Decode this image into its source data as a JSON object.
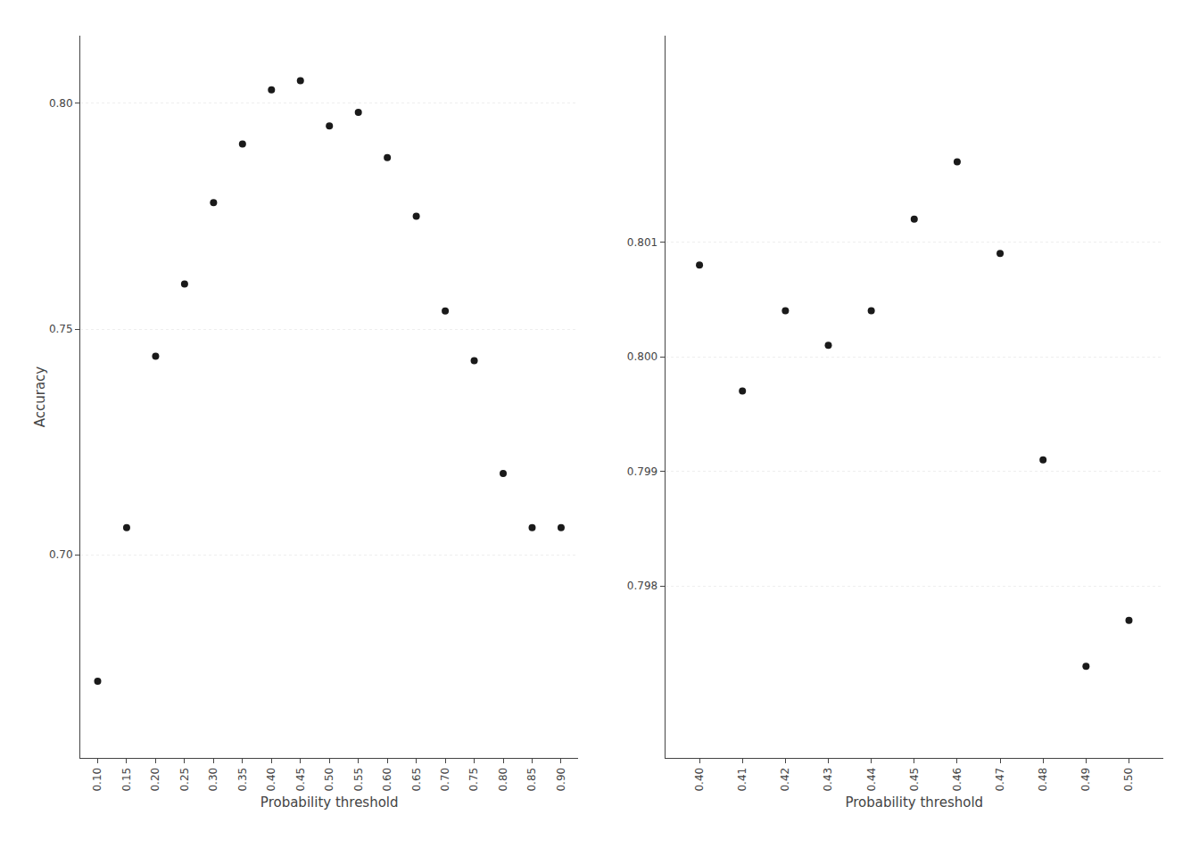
{
  "chart_data": [
    {
      "type": "scatter",
      "x": [
        0.1,
        0.15,
        0.2,
        0.25,
        0.3,
        0.35,
        0.4,
        0.45,
        0.5,
        0.55,
        0.6,
        0.65,
        0.7,
        0.75,
        0.8,
        0.85,
        0.9
      ],
      "values": [
        0.672,
        0.706,
        0.744,
        0.76,
        0.778,
        0.791,
        0.803,
        0.805,
        0.795,
        0.798,
        0.788,
        0.775,
        0.754,
        0.743,
        0.718,
        0.706,
        0.706
      ],
      "color": "#1a1a1a",
      "marker": "circle",
      "x_label": "Probability threshold",
      "y_label": "Accuracy",
      "xlim": [
        0.07,
        0.93
      ],
      "ylim": [
        0.655,
        0.815
      ],
      "xticks": [
        {
          "value": 0.1,
          "label": "0.10"
        },
        {
          "value": 0.15,
          "label": "0.15"
        },
        {
          "value": 0.2,
          "label": "0.20"
        },
        {
          "value": 0.25,
          "label": "0.25"
        },
        {
          "value": 0.3,
          "label": "0.30"
        },
        {
          "value": 0.35,
          "label": "0.35"
        },
        {
          "value": 0.4,
          "label": "0.40"
        },
        {
          "value": 0.45,
          "label": "0.45"
        },
        {
          "value": 0.5,
          "label": "0.50"
        },
        {
          "value": 0.55,
          "label": "0.55"
        },
        {
          "value": 0.6,
          "label": "0.60"
        },
        {
          "value": 0.65,
          "label": "0.65"
        },
        {
          "value": 0.7,
          "label": "0.70"
        },
        {
          "value": 0.75,
          "label": "0.75"
        },
        {
          "value": 0.8,
          "label": "0.80"
        },
        {
          "value": 0.85,
          "label": "0.85"
        },
        {
          "value": 0.9,
          "label": "0.90"
        }
      ],
      "yticks": [
        {
          "value": 0.7,
          "label": "0.70"
        },
        {
          "value": 0.75,
          "label": "0.75"
        },
        {
          "value": 0.8,
          "label": "0.80"
        }
      ],
      "grid": true
    },
    {
      "type": "scatter",
      "x": [
        0.4,
        0.41,
        0.42,
        0.43,
        0.44,
        0.45,
        0.46,
        0.47,
        0.48,
        0.49,
        0.5
      ],
      "values": [
        0.8008,
        0.7997,
        0.8004,
        0.8001,
        0.8004,
        0.8012,
        0.8017,
        0.8009,
        0.7991,
        0.7973,
        0.7977
      ],
      "color": "#1a1a1a",
      "marker": "circle",
      "x_label": "Probability threshold",
      "xlim": [
        0.392,
        0.508
      ],
      "ylim": [
        0.7965,
        0.8028
      ],
      "xticks": [
        {
          "value": 0.4,
          "label": "0.40"
        },
        {
          "value": 0.41,
          "label": "0.41"
        },
        {
          "value": 0.42,
          "label": "0.42"
        },
        {
          "value": 0.43,
          "label": "0.43"
        },
        {
          "value": 0.44,
          "label": "0.44"
        },
        {
          "value": 0.45,
          "label": "0.45"
        },
        {
          "value": 0.46,
          "label": "0.46"
        },
        {
          "value": 0.47,
          "label": "0.47"
        },
        {
          "value": 0.48,
          "label": "0.48"
        },
        {
          "value": 0.49,
          "label": "0.49"
        },
        {
          "value": 0.5,
          "label": "0.50"
        }
      ],
      "yticks": [
        0.798,
        0.799,
        {
          "value": 0.8,
          "label": "0.800"
        },
        0.801
      ],
      "grid": true
    }
  ]
}
